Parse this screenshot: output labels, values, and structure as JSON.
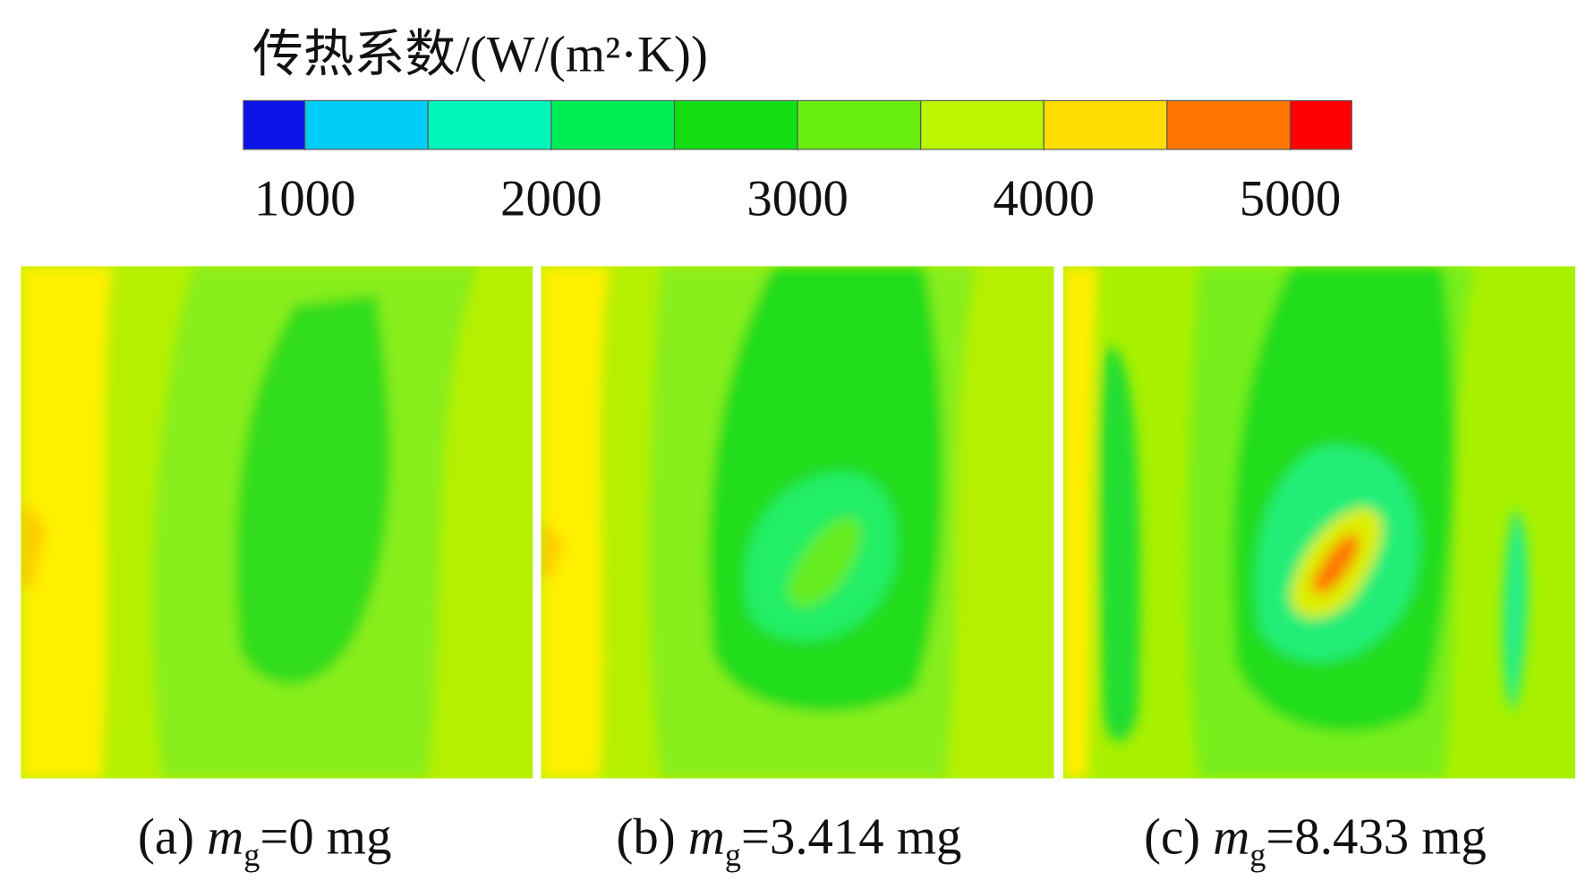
{
  "chart_data": {
    "type": "contour",
    "colorbar": {
      "title": "传热系数/(W/(m²·K))",
      "xlim": [
        750,
        5250
      ],
      "levels": [
        1000,
        1500,
        2000,
        2500,
        3000,
        3500,
        4000,
        4500,
        5000
      ],
      "colors": [
        "#0a14e6",
        "#00cdf5",
        "#00f5b8",
        "#00ee55",
        "#13dd13",
        "#66ee11",
        "#bbf500",
        "#ffdd00",
        "#ff7700",
        "#ff0000"
      ],
      "xticks": [
        1000,
        2000,
        3000,
        4000,
        5000
      ]
    },
    "panels": [
      {
        "label": "(a) ",
        "symbol": "m",
        "subscript": "g",
        "value": "=0 mg"
      },
      {
        "label": "(b) ",
        "symbol": "m",
        "subscript": "g",
        "value": "=3.414 mg"
      },
      {
        "label": "(c) ",
        "symbol": "m",
        "subscript": "g",
        "value": "=8.433 mg"
      }
    ]
  }
}
